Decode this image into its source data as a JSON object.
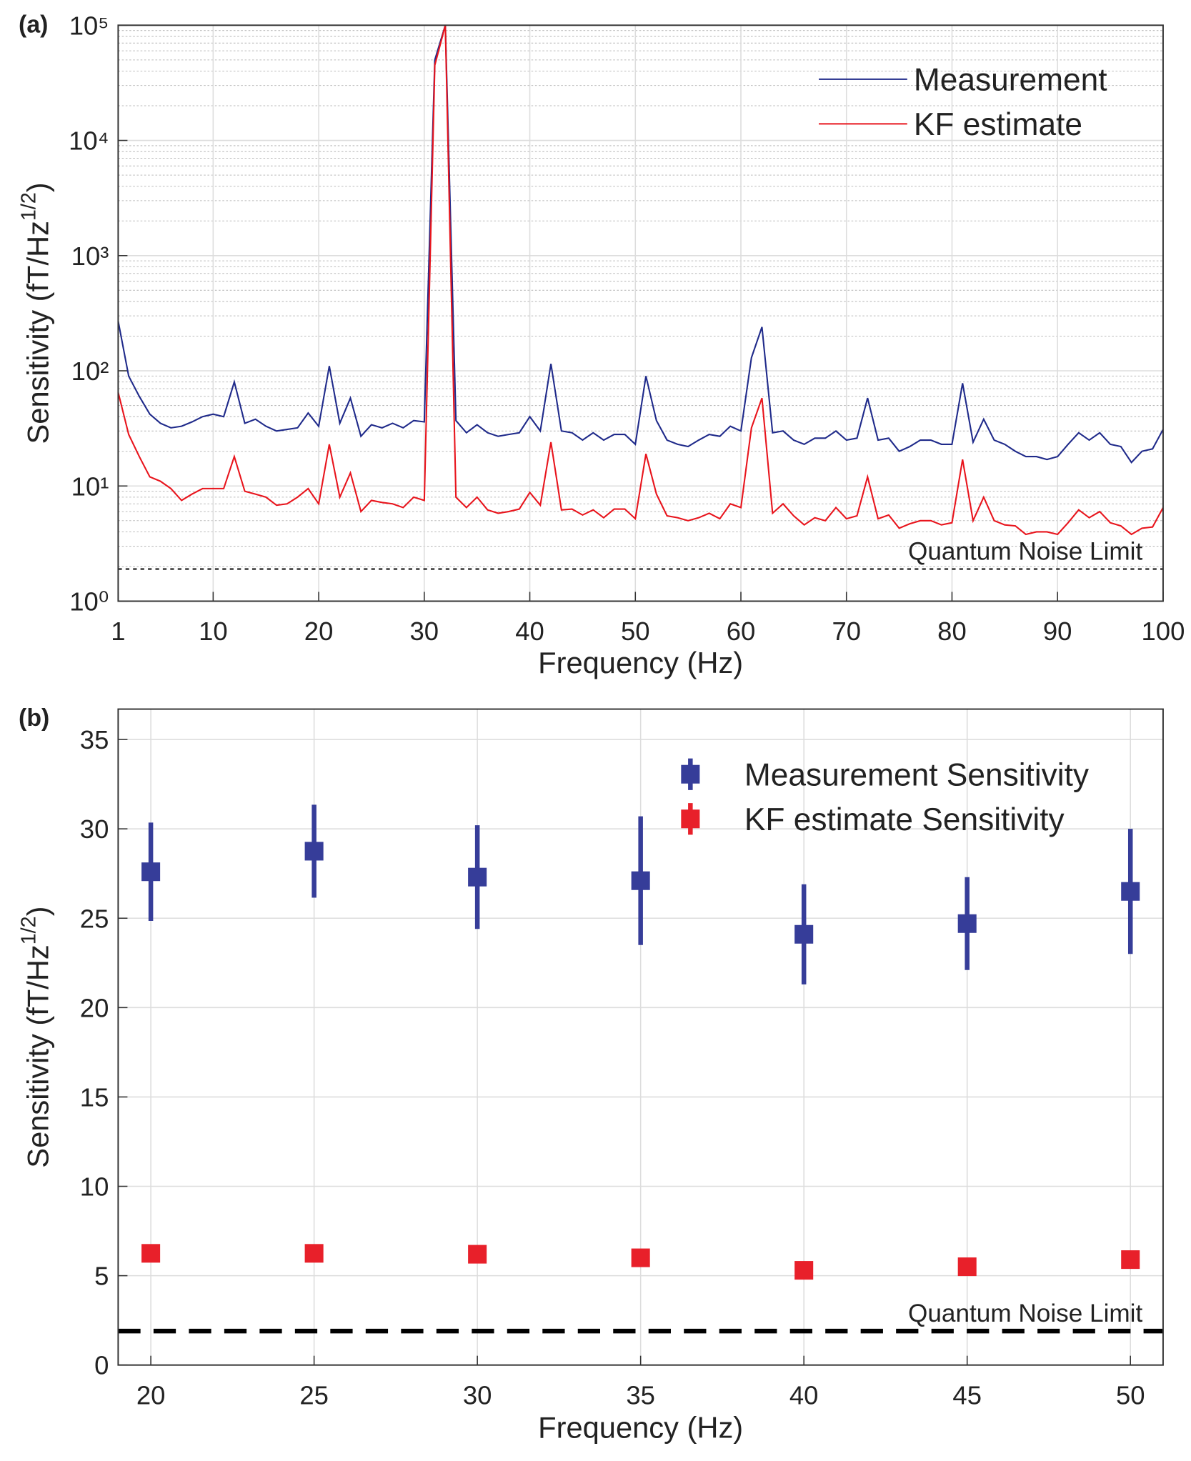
{
  "chart_data": [
    {
      "type": "line",
      "panel_label": "(a)",
      "xlabel": "Frequency (Hz)",
      "ylabel": {
        "text": "Sensitivity (fT/Hz",
        "superscript": "1/2",
        "close": ")"
      },
      "log_y": true,
      "grid": true,
      "minor_grid": true,
      "legend": "upper right",
      "xlim": [
        1,
        100
      ],
      "xticks": [
        1,
        10,
        20,
        30,
        40,
        50,
        60,
        70,
        80,
        90,
        100
      ],
      "ylim": [
        1,
        100000
      ],
      "yticks": [
        {
          "value": 1,
          "label": "10⁰"
        },
        {
          "value": 10,
          "label": "10¹"
        },
        {
          "value": 100,
          "label": "10²"
        },
        {
          "value": 1000,
          "label": "10³"
        },
        {
          "value": 10000,
          "label": "10⁴"
        },
        {
          "value": 100000,
          "label": "10⁵"
        }
      ],
      "x": [
        1,
        2,
        3,
        4,
        5,
        6,
        7,
        8,
        9,
        10,
        11,
        12,
        13,
        14,
        15,
        16,
        17,
        18,
        19,
        20,
        21,
        22,
        23,
        24,
        25,
        26,
        27,
        28,
        29,
        30,
        31,
        32,
        33,
        34,
        35,
        36,
        37,
        38,
        39,
        40,
        41,
        42,
        43,
        44,
        45,
        46,
        47,
        48,
        49,
        50,
        51,
        52,
        53,
        54,
        55,
        56,
        57,
        58,
        59,
        60,
        61,
        62,
        63,
        64,
        65,
        66,
        67,
        68,
        69,
        70,
        71,
        72,
        73,
        74,
        75,
        76,
        77,
        78,
        79,
        80,
        81,
        82,
        83,
        84,
        85,
        86,
        87,
        88,
        89,
        90,
        91,
        92,
        93,
        94,
        95,
        96,
        97,
        98,
        99,
        100
      ],
      "series": [
        {
          "name": "Measurement",
          "color": "#1f2a8a",
          "values": [
            270,
            90,
            60,
            42,
            35,
            32,
            33,
            36,
            40,
            42,
            40,
            80,
            35,
            38,
            33,
            30,
            31,
            32,
            43,
            33,
            110,
            35,
            58,
            27,
            34,
            32,
            35,
            32,
            37,
            36,
            50000,
            100000,
            37,
            29,
            34,
            29,
            27,
            28,
            29,
            40,
            30,
            115,
            30,
            29,
            25,
            29,
            25,
            28,
            28,
            23,
            90,
            37,
            25,
            23,
            22,
            25,
            28,
            27,
            33,
            30,
            130,
            240,
            29,
            30,
            25,
            23,
            26,
            26,
            30,
            25,
            26,
            58,
            25,
            26,
            20,
            22,
            25,
            25,
            23,
            23,
            78,
            24,
            38,
            25,
            23,
            20,
            18,
            18,
            17,
            18,
            23,
            29,
            25,
            29,
            23,
            22,
            16,
            20,
            21,
            31
          ]
        },
        {
          "name": "KF estimate",
          "color": "#e8141c",
          "values": [
            65,
            28,
            18,
            12,
            11,
            9.5,
            7.5,
            8.5,
            9.5,
            9.5,
            9.5,
            18,
            9,
            8.5,
            8,
            6.8,
            7,
            8,
            9.5,
            7,
            23,
            8,
            13,
            6,
            7.5,
            7.2,
            7,
            6.5,
            8,
            7.5,
            45000,
            100000,
            8,
            6.5,
            8,
            6.2,
            5.8,
            6,
            6.3,
            8.8,
            6.8,
            24,
            6.2,
            6.3,
            5.6,
            6.2,
            5.3,
            6.3,
            6.3,
            5.2,
            19,
            8.5,
            5.5,
            5.3,
            5,
            5.3,
            5.8,
            5.2,
            7,
            6.5,
            32,
            58,
            5.8,
            7,
            5.5,
            4.6,
            5.3,
            5,
            6.5,
            5.2,
            5.5,
            12,
            5.2,
            5.6,
            4.3,
            4.7,
            5,
            5,
            4.6,
            4.8,
            17,
            5,
            8,
            5,
            4.6,
            4.5,
            3.8,
            4,
            4,
            3.8,
            4.8,
            6.2,
            5.3,
            6,
            4.8,
            4.5,
            3.8,
            4.3,
            4.4,
            6.5
          ]
        }
      ],
      "hline": {
        "value": 1.9,
        "label": "Quantum Noise Limit",
        "linestyle": "dotted"
      }
    },
    {
      "type": "errorbar",
      "panel_label": "(b)",
      "xlabel": "Frequency (Hz)",
      "ylabel": {
        "text": "Sensitivity (fT/Hz",
        "superscript": "1/2",
        "close": ")"
      },
      "log_y": false,
      "grid": true,
      "minor_grid": false,
      "legend": "upper right",
      "xlim": [
        19,
        51
      ],
      "xticks": [
        20,
        25,
        30,
        35,
        40,
        45,
        50
      ],
      "ylim": [
        0,
        36.7
      ],
      "yticks": [
        0,
        5,
        10,
        15,
        20,
        25,
        30,
        35
      ],
      "x": [
        20,
        25,
        30,
        35,
        40,
        45,
        50
      ],
      "series": [
        {
          "name": "Measurement Sensitivity",
          "color": "#363d99",
          "values": [
            27.6,
            28.75,
            27.3,
            27.1,
            24.1,
            24.7,
            26.5
          ],
          "errors": [
            2.75,
            2.6,
            2.9,
            3.6,
            2.8,
            2.6,
            3.5
          ]
        },
        {
          "name": "KF estimate Sensitivity",
          "color": "#e8202a",
          "values": [
            6.25,
            6.25,
            6.2,
            6.0,
            5.3,
            5.5,
            5.9
          ],
          "errors": [
            0.2,
            0.5,
            0.25,
            0.5,
            0.4,
            0.25,
            0.5
          ]
        }
      ],
      "hline": {
        "value": 1.9,
        "label": "Quantum Noise Limit",
        "linestyle": "dashed"
      }
    }
  ]
}
